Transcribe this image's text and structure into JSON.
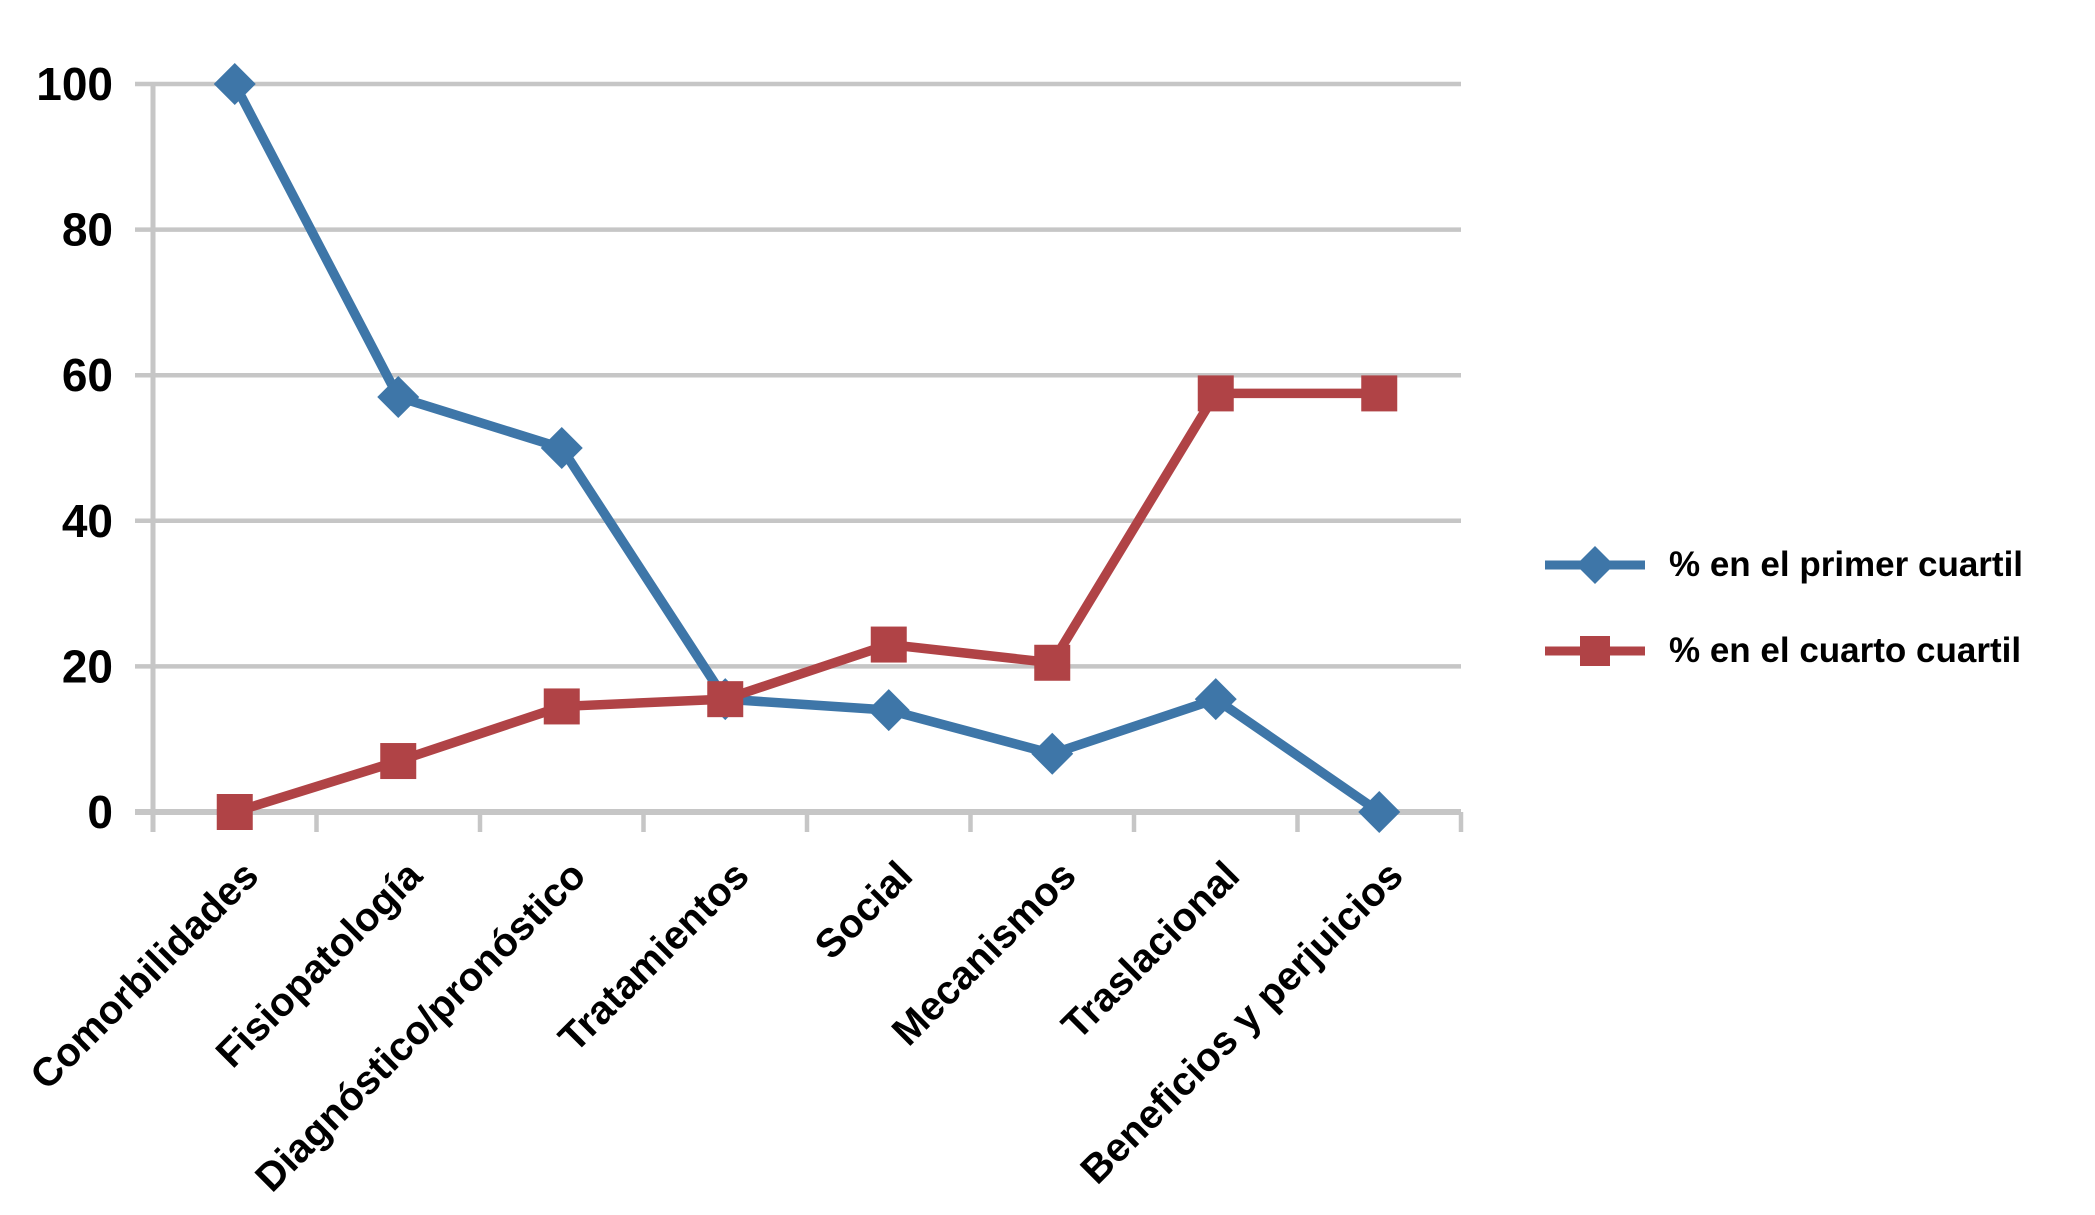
{
  "chart_data": {
    "type": "line",
    "categories": [
      "Comorbilidades",
      "Fisiopatología",
      "Diagnóstico/pronóstico",
      "Tratamientos",
      "Social",
      "Mecanismos",
      "Traslacional",
      "Beneficios y perjuicios"
    ],
    "series": [
      {
        "name": "% en el primer cuartil",
        "marker": "diamond",
        "color": "#3E76A8",
        "values": [
          100,
          57,
          50,
          15.5,
          14,
          8,
          15.5,
          0
        ]
      },
      {
        "name": "% en el cuarto cuartil",
        "marker": "square",
        "color": "#B04346",
        "values": [
          0,
          7,
          14.5,
          15.5,
          23,
          20.5,
          57.5,
          57.5
        ]
      }
    ],
    "title": "",
    "xlabel": "",
    "ylabel": "",
    "ylim": [
      0,
      100
    ],
    "yticks": [
      0,
      20,
      40,
      60,
      80,
      100
    ],
    "ytick_labels": [
      "0",
      "20",
      "40",
      "60",
      "80",
      "100"
    ],
    "grid": "horizontal",
    "gridline_color": "#C6C6C6",
    "axis_color": "#C6C6C6",
    "text_color": "#000000",
    "background": "#FFFFFF",
    "legend_position": "right"
  }
}
